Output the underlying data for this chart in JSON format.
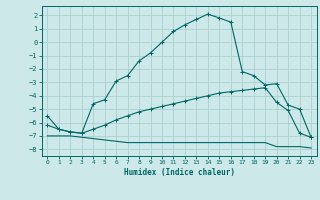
{
  "xlabel": "Humidex (Indice chaleur)",
  "bg_color": "#cce8e8",
  "grid_color": "#aad0d0",
  "line_color": "#006666",
  "xlim": [
    -0.5,
    23.5
  ],
  "ylim": [
    -8.5,
    2.7
  ],
  "xticks": [
    0,
    1,
    2,
    3,
    4,
    5,
    6,
    7,
    8,
    9,
    10,
    11,
    12,
    13,
    14,
    15,
    16,
    17,
    18,
    19,
    20,
    21,
    22,
    23
  ],
  "yticks": [
    -8,
    -7,
    -6,
    -5,
    -4,
    -3,
    -2,
    -1,
    0,
    1,
    2
  ],
  "curve1_x": [
    0,
    1,
    2,
    3,
    4,
    5,
    6,
    7,
    8,
    9,
    10,
    11,
    12,
    13,
    14,
    15,
    16,
    17,
    18,
    19,
    20,
    21,
    22,
    23
  ],
  "curve1_y": [
    -5.5,
    -6.5,
    -6.7,
    -6.8,
    -4.6,
    -4.3,
    -2.9,
    -2.5,
    -1.4,
    -0.8,
    0.0,
    0.8,
    1.3,
    1.7,
    2.1,
    1.8,
    1.5,
    -2.2,
    -2.5,
    -3.2,
    -3.1,
    -4.7,
    -5.0,
    -7.1
  ],
  "curve2_x": [
    0,
    1,
    2,
    3,
    4,
    5,
    6,
    7,
    8,
    9,
    10,
    11,
    12,
    13,
    14,
    15,
    16,
    17,
    18,
    19,
    20,
    21,
    22,
    23
  ],
  "curve2_y": [
    -6.2,
    -6.5,
    -6.7,
    -6.8,
    -6.5,
    -6.2,
    -5.8,
    -5.5,
    -5.2,
    -5.0,
    -4.8,
    -4.6,
    -4.4,
    -4.2,
    -4.0,
    -3.8,
    -3.7,
    -3.6,
    -3.5,
    -3.4,
    -4.5,
    -5.1,
    -6.8,
    -7.1
  ],
  "curve3_x": [
    0,
    1,
    2,
    3,
    4,
    5,
    6,
    7,
    8,
    9,
    10,
    11,
    12,
    13,
    14,
    15,
    16,
    17,
    18,
    19,
    20,
    21,
    22,
    23
  ],
  "curve3_y": [
    -7.0,
    -7.0,
    -7.0,
    -7.1,
    -7.2,
    -7.3,
    -7.4,
    -7.5,
    -7.5,
    -7.5,
    -7.5,
    -7.5,
    -7.5,
    -7.5,
    -7.5,
    -7.5,
    -7.5,
    -7.5,
    -7.5,
    -7.5,
    -7.8,
    -7.8,
    -7.8,
    -7.9
  ]
}
